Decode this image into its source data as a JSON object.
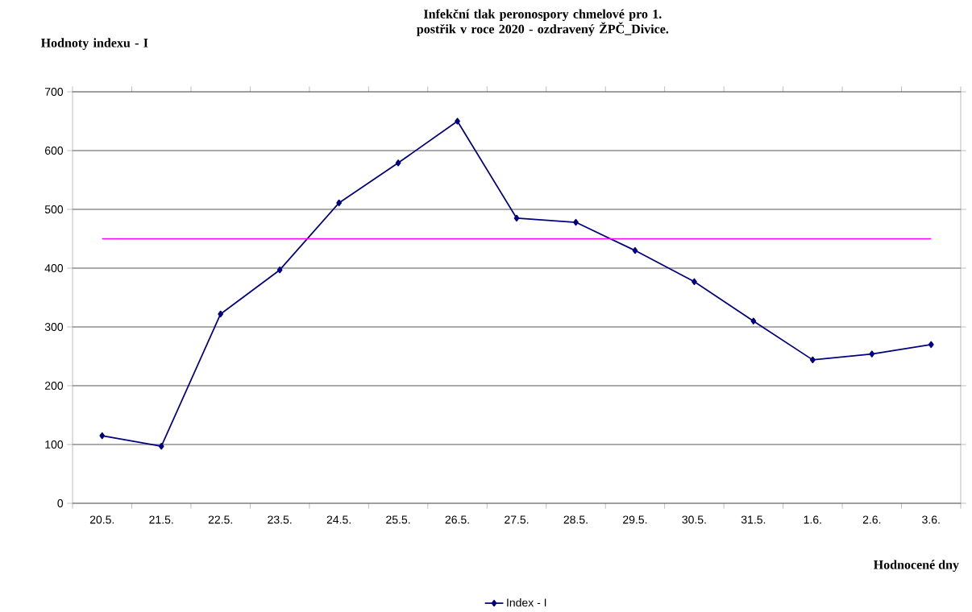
{
  "chart_data": {
    "type": "line",
    "title": "Infekční tlak peronospory chmelové pro 1. postřik v roce 2020 - ozdravený ŽPČ_Divice.",
    "xlabel": "Hodnocené dny",
    "ylabel": "Hodnoty indexu - I",
    "categories": [
      "20.5.",
      "21.5.",
      "22.5.",
      "23.5.",
      "24.5.",
      "25.5.",
      "26.5.",
      "27.5.",
      "28.5.",
      "29.5.",
      "30.5.",
      "31.5.",
      "1.6.",
      "2.6.",
      "3.6."
    ],
    "series": [
      {
        "name": "Index - I",
        "color": "#000080",
        "values": [
          115,
          97,
          322,
          397,
          511,
          579,
          650,
          485,
          478,
          430,
          377,
          310,
          244,
          254,
          270
        ]
      }
    ],
    "ref_lines": [
      {
        "axis": "y",
        "value": 450,
        "color": "#ff00ff"
      }
    ],
    "ylim": [
      0,
      700
    ],
    "yticks": [
      0,
      100,
      200,
      300,
      400,
      500,
      600,
      700
    ],
    "grid": "y",
    "legend": "bottom",
    "marker": "diamond",
    "line_style": "solid"
  }
}
